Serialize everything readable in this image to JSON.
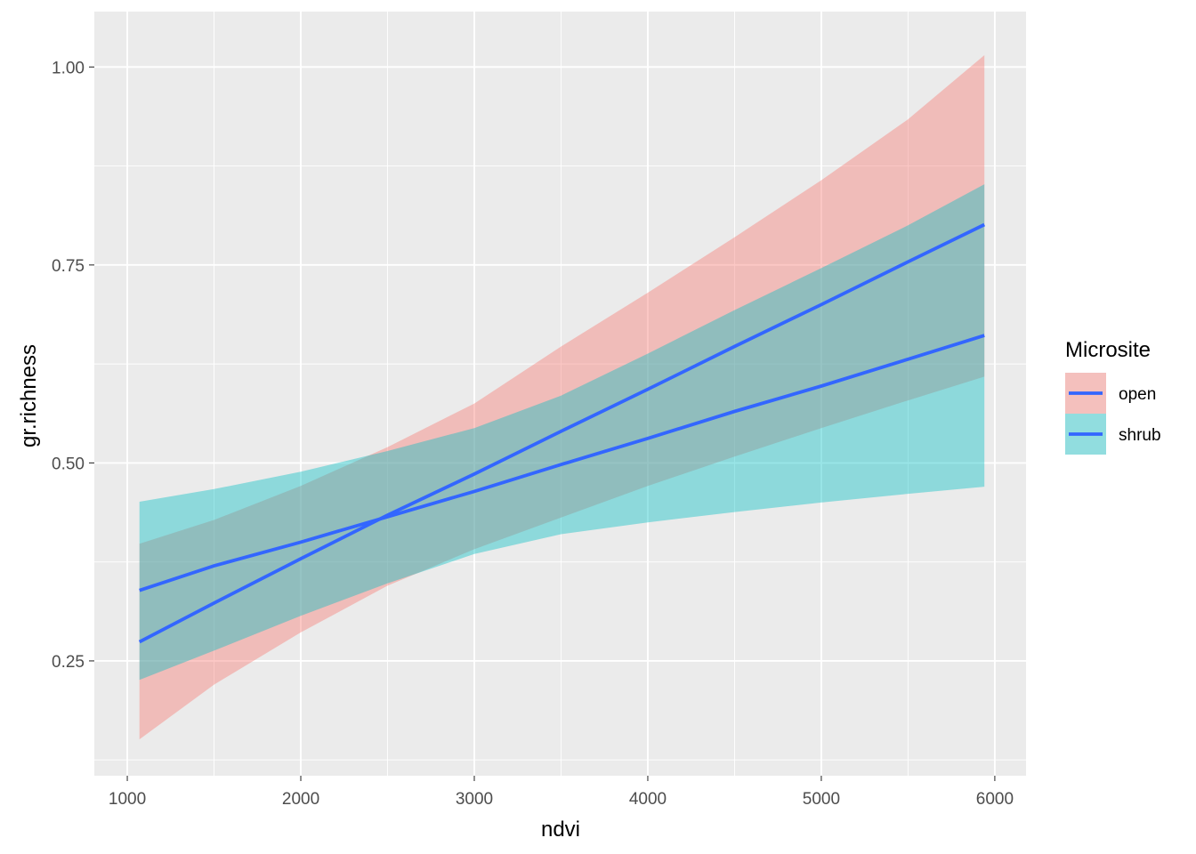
{
  "chart_data": {
    "type": "line",
    "title": "",
    "xlabel": "ndvi",
    "ylabel": "gr.richness",
    "xlim": [
      810,
      6180
    ],
    "ylim": [
      0.105,
      1.07
    ],
    "x_ticks": [
      1000,
      2000,
      3000,
      4000,
      5000,
      6000
    ],
    "x_tick_labels": [
      "1000",
      "2000",
      "3000",
      "4000",
      "5000",
      "6000"
    ],
    "y_ticks": [
      0.25,
      0.5,
      0.75,
      1.0
    ],
    "y_tick_labels": [
      "0.25",
      "0.50",
      "0.75",
      "1.00"
    ],
    "grid": true,
    "panel_background": "#EBEBEB",
    "line_color": "#3366FF",
    "legend": {
      "title": "Microsite",
      "position": "right",
      "entries": [
        {
          "label": "open",
          "fill": "#F8766D"
        },
        {
          "label": "shrub",
          "fill": "#00BFC4"
        }
      ]
    },
    "series": [
      {
        "name": "open",
        "fill": "#F8766D",
        "x": [
          1070,
          1500,
          2000,
          2500,
          3000,
          3500,
          4000,
          4500,
          5000,
          5500,
          5940
        ],
        "fit": [
          0.274,
          0.323,
          0.379,
          0.434,
          0.486,
          0.54,
          0.593,
          0.647,
          0.7,
          0.754,
          0.801
        ],
        "lower": [
          0.151,
          0.22,
          0.286,
          0.345,
          0.391,
          0.431,
          0.471,
          0.508,
          0.544,
          0.579,
          0.609
        ],
        "upper": [
          0.398,
          0.428,
          0.471,
          0.52,
          0.575,
          0.647,
          0.715,
          0.785,
          0.857,
          0.934,
          1.015
        ]
      },
      {
        "name": "shrub",
        "fill": "#00BFC4",
        "x": [
          1070,
          1500,
          2000,
          2500,
          3000,
          3500,
          4000,
          4500,
          5000,
          5500,
          5940
        ],
        "fit": [
          0.339,
          0.37,
          0.4,
          0.432,
          0.464,
          0.498,
          0.531,
          0.565,
          0.597,
          0.631,
          0.661
        ],
        "lower": [
          0.226,
          0.263,
          0.307,
          0.348,
          0.385,
          0.41,
          0.425,
          0.438,
          0.45,
          0.461,
          0.47
        ],
        "upper": [
          0.451,
          0.467,
          0.489,
          0.515,
          0.544,
          0.585,
          0.638,
          0.693,
          0.746,
          0.8,
          0.852
        ]
      }
    ]
  }
}
